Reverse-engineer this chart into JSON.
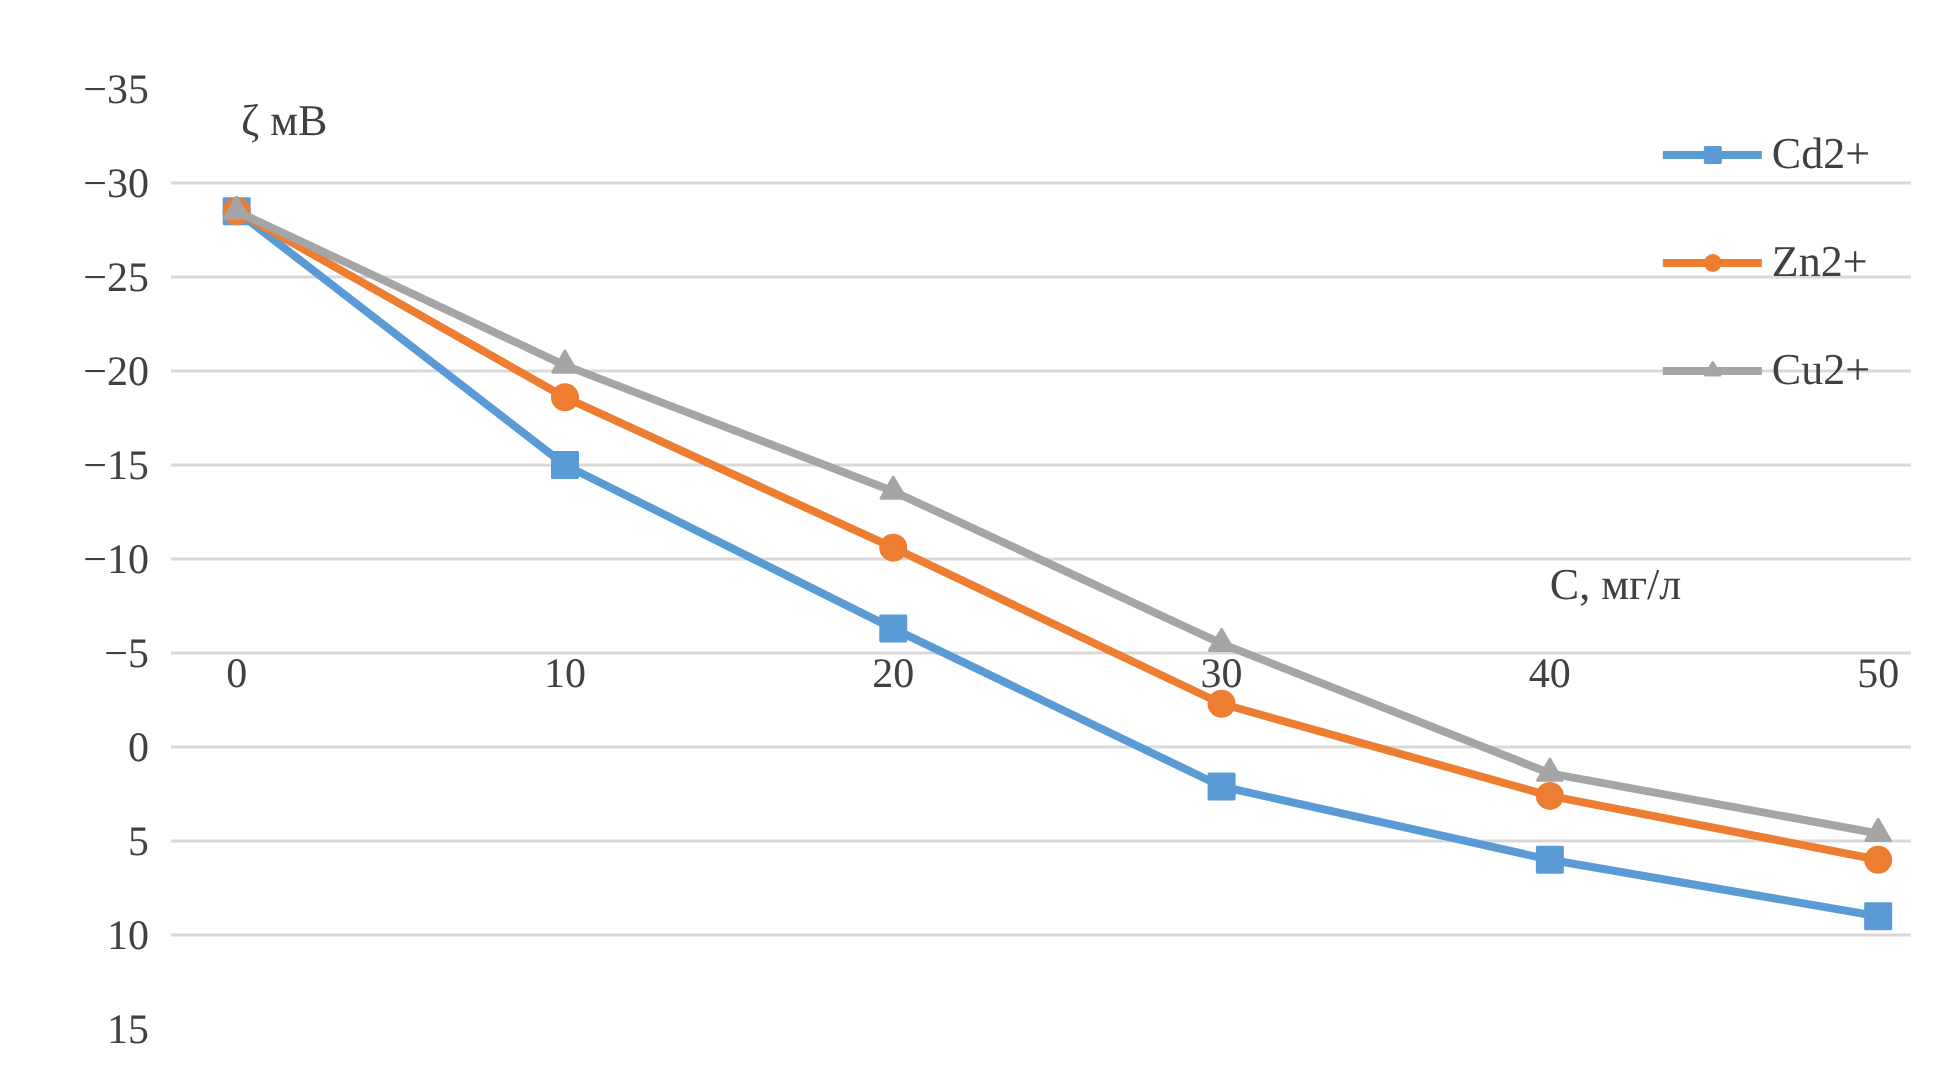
{
  "chart_data": {
    "type": "line",
    "xlabel": "C, мг/л",
    "ylabel": "ζ мВ",
    "x": [
      0,
      10,
      20,
      30,
      40,
      50
    ],
    "series": [
      {
        "name": "Cd2+",
        "color": "#5b9bd5",
        "marker": "square",
        "values": [
          -28.5,
          -15,
          -6.3,
          2.1,
          6,
          9
        ]
      },
      {
        "name": "Zn2+",
        "color": "#ed7d31",
        "marker": "circle",
        "values": [
          -28.5,
          -18.6,
          -10.6,
          -2.3,
          2.6,
          6
        ]
      },
      {
        "name": "Cu2+",
        "color": "#a5a5a5",
        "marker": "triangle",
        "values": [
          -28.5,
          -20.3,
          -13.6,
          -5.5,
          1.4,
          4.6
        ]
      }
    ],
    "xlim": [
      -2,
      51
    ],
    "xticks": [
      0,
      10,
      20,
      30,
      40,
      50
    ],
    "ylim": [
      15,
      -35
    ],
    "yticks": [
      -35,
      -30,
      -25,
      -20,
      -15,
      -10,
      -5,
      0,
      5,
      10,
      15
    ],
    "grid": "y",
    "legend": "top right"
  }
}
